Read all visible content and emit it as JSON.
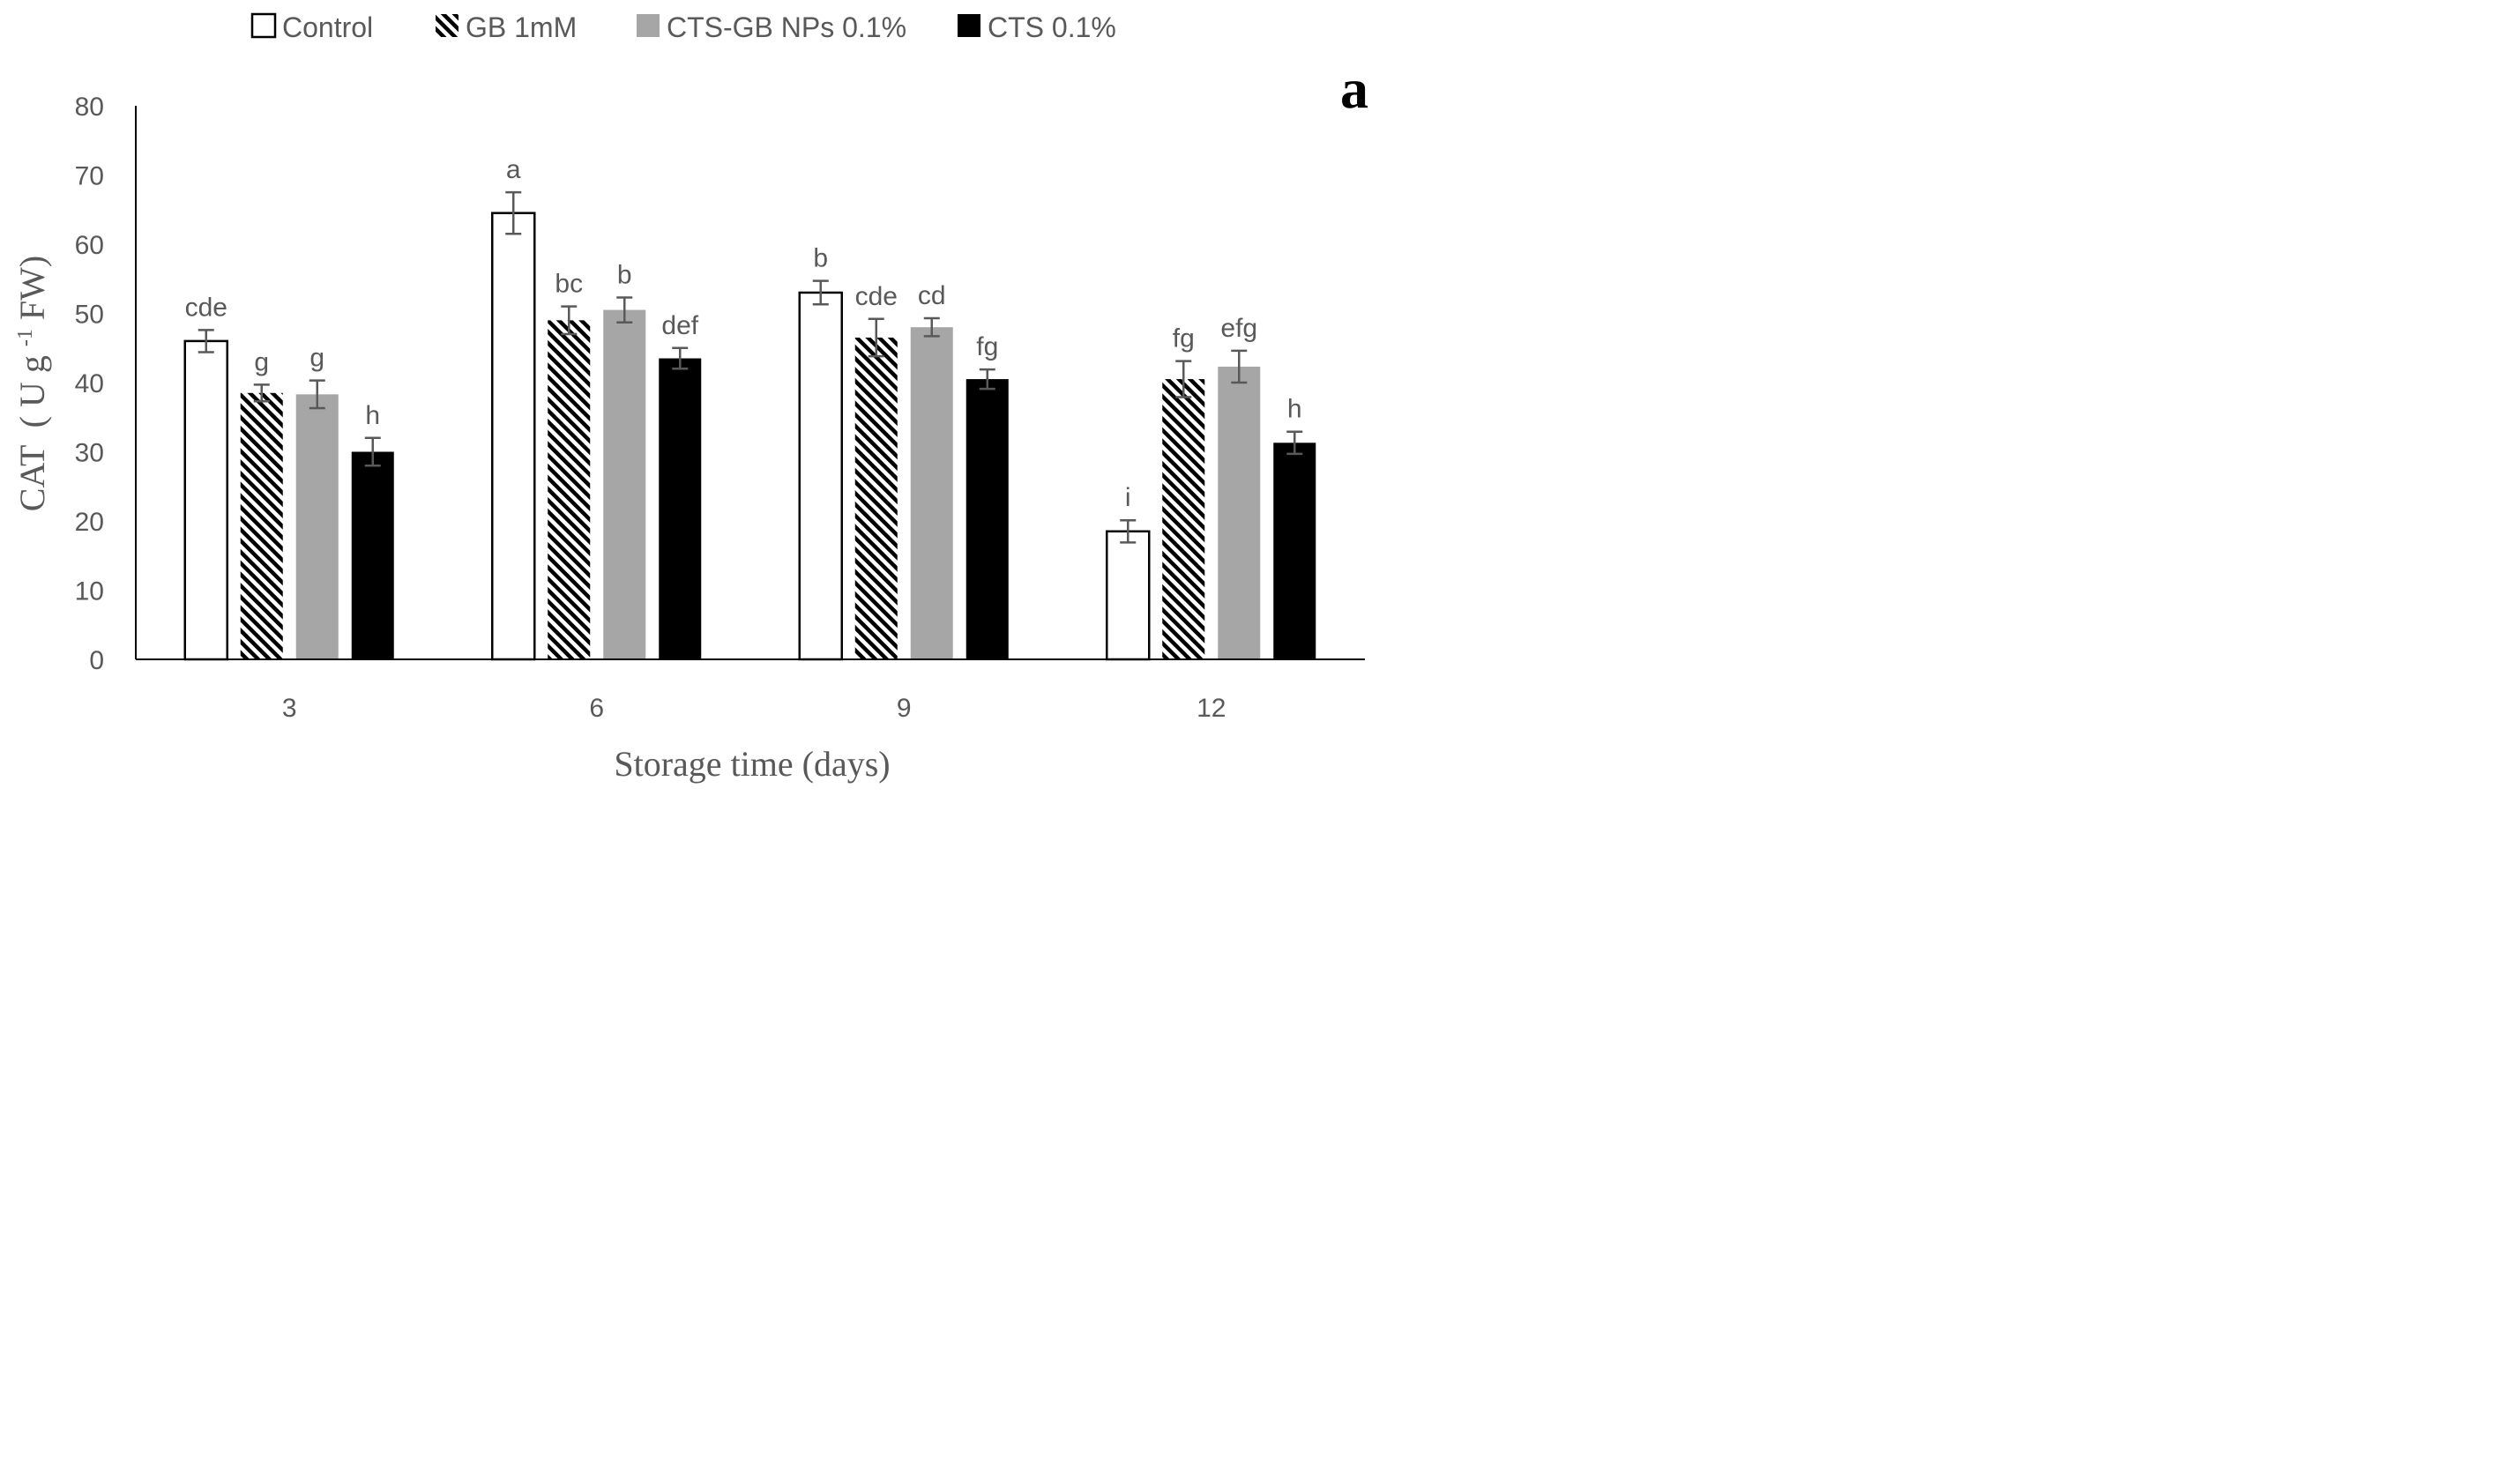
{
  "chart_data": {
    "type": "bar",
    "panel_label": "a",
    "xlabel": "Storage time (days)",
    "ylabel": {
      "prefix": "CAT",
      "unit_open": "( U g",
      "superscript": "-1",
      "unit_close": " FW)"
    },
    "ylim": [
      0,
      80
    ],
    "yticks": [
      0,
      10,
      20,
      30,
      40,
      50,
      60,
      70,
      80
    ],
    "categories": [
      "3",
      "6",
      "9",
      "12"
    ],
    "legend_position": "top",
    "series": [
      {
        "name": "Control",
        "fill": "#ffffff",
        "pattern": "none",
        "values": [
          46,
          64.5,
          53,
          18.5
        ],
        "errors": [
          1.6,
          3.0,
          1.7,
          1.6
        ],
        "letters": [
          "cde",
          "a",
          "b",
          "i"
        ]
      },
      {
        "name": "GB 1mM",
        "fill": "#000000",
        "pattern": "diagonal-stripes",
        "values": [
          38.5,
          49,
          46.5,
          40.5
        ],
        "errors": [
          1.2,
          2.0,
          2.7,
          2.6
        ],
        "letters": [
          "g",
          "bc",
          "cde",
          "fg"
        ]
      },
      {
        "name": "CTS-GB NPs 0.1%",
        "fill": "#a6a6a6",
        "pattern": "none",
        "values": [
          38.3,
          50.5,
          48,
          42.3
        ],
        "errors": [
          2.0,
          1.8,
          1.3,
          2.3
        ],
        "letters": [
          "g",
          "b",
          "cd",
          "efg"
        ]
      },
      {
        "name": "CTS 0.1%",
        "fill": "#000000",
        "pattern": "none",
        "values": [
          30,
          43.5,
          40.5,
          31.3
        ],
        "errors": [
          2.0,
          1.5,
          1.4,
          1.6
        ],
        "letters": [
          "h",
          "def",
          "fg",
          "h"
        ]
      }
    ]
  }
}
